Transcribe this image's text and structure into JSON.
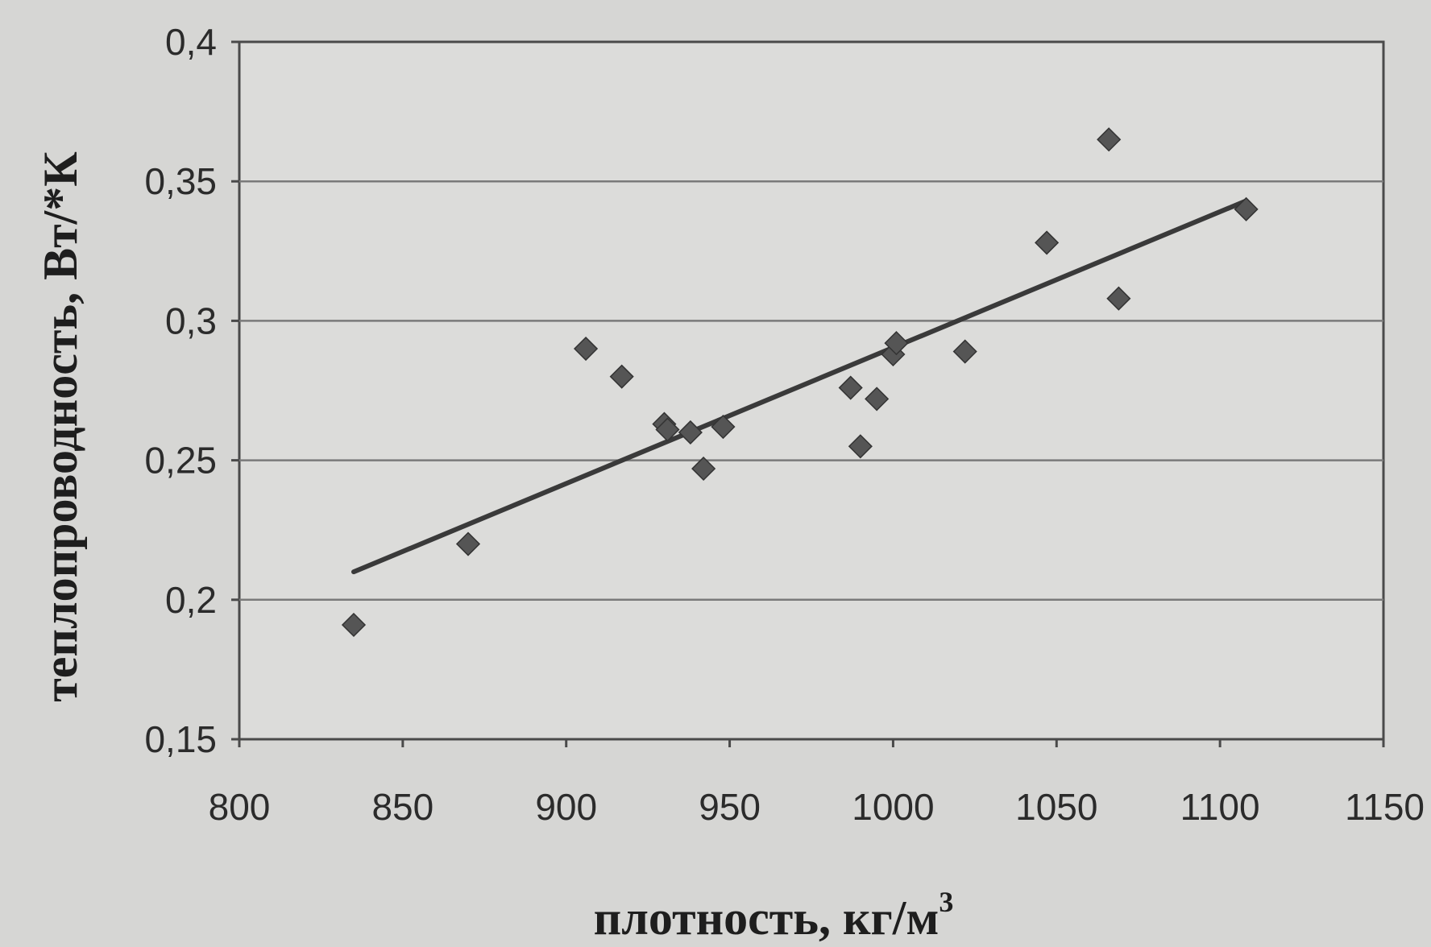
{
  "chart_data": {
    "type": "scatter",
    "xlabel": "плотность, кг/м",
    "xlabel_superscript": "3",
    "ylabel": "теплопроводность, Вт/*К",
    "xlim": [
      800,
      1150
    ],
    "ylim": [
      0.15,
      0.4
    ],
    "x_ticks": [
      800,
      850,
      900,
      950,
      1000,
      1050,
      1100,
      1150
    ],
    "x_tick_labels": [
      "800",
      "850",
      "900",
      "950",
      "1000",
      "1050",
      "1100",
      "1150"
    ],
    "y_ticks": [
      0.15,
      0.2,
      0.25,
      0.3,
      0.35,
      0.4
    ],
    "y_tick_labels": [
      "0,15",
      "0,2",
      "0,25",
      "0,3",
      "0,35",
      "0,4"
    ],
    "grid": "horizontal",
    "legend": "none",
    "marker": "diamond",
    "colors": {
      "background": "#d6d6d4",
      "plot_area": "#dcdcda",
      "marker": "#555555",
      "trend_line": "#3a3a3a",
      "grid": "#7a7a7a",
      "frame": "#4a4a4a"
    },
    "points": [
      {
        "x": 835,
        "y": 0.191
      },
      {
        "x": 870,
        "y": 0.22
      },
      {
        "x": 906,
        "y": 0.29
      },
      {
        "x": 917,
        "y": 0.28
      },
      {
        "x": 930,
        "y": 0.263
      },
      {
        "x": 931,
        "y": 0.261
      },
      {
        "x": 938,
        "y": 0.26
      },
      {
        "x": 942,
        "y": 0.247
      },
      {
        "x": 948,
        "y": 0.262
      },
      {
        "x": 987,
        "y": 0.276
      },
      {
        "x": 990,
        "y": 0.255
      },
      {
        "x": 995,
        "y": 0.272
      },
      {
        "x": 1000,
        "y": 0.288
      },
      {
        "x": 1001,
        "y": 0.292
      },
      {
        "x": 1022,
        "y": 0.289
      },
      {
        "x": 1047,
        "y": 0.328
      },
      {
        "x": 1066,
        "y": 0.365
      },
      {
        "x": 1069,
        "y": 0.308
      },
      {
        "x": 1108,
        "y": 0.34
      }
    ],
    "trend_line": {
      "x": [
        835,
        1108
      ],
      "y": [
        0.21,
        0.343
      ]
    }
  }
}
